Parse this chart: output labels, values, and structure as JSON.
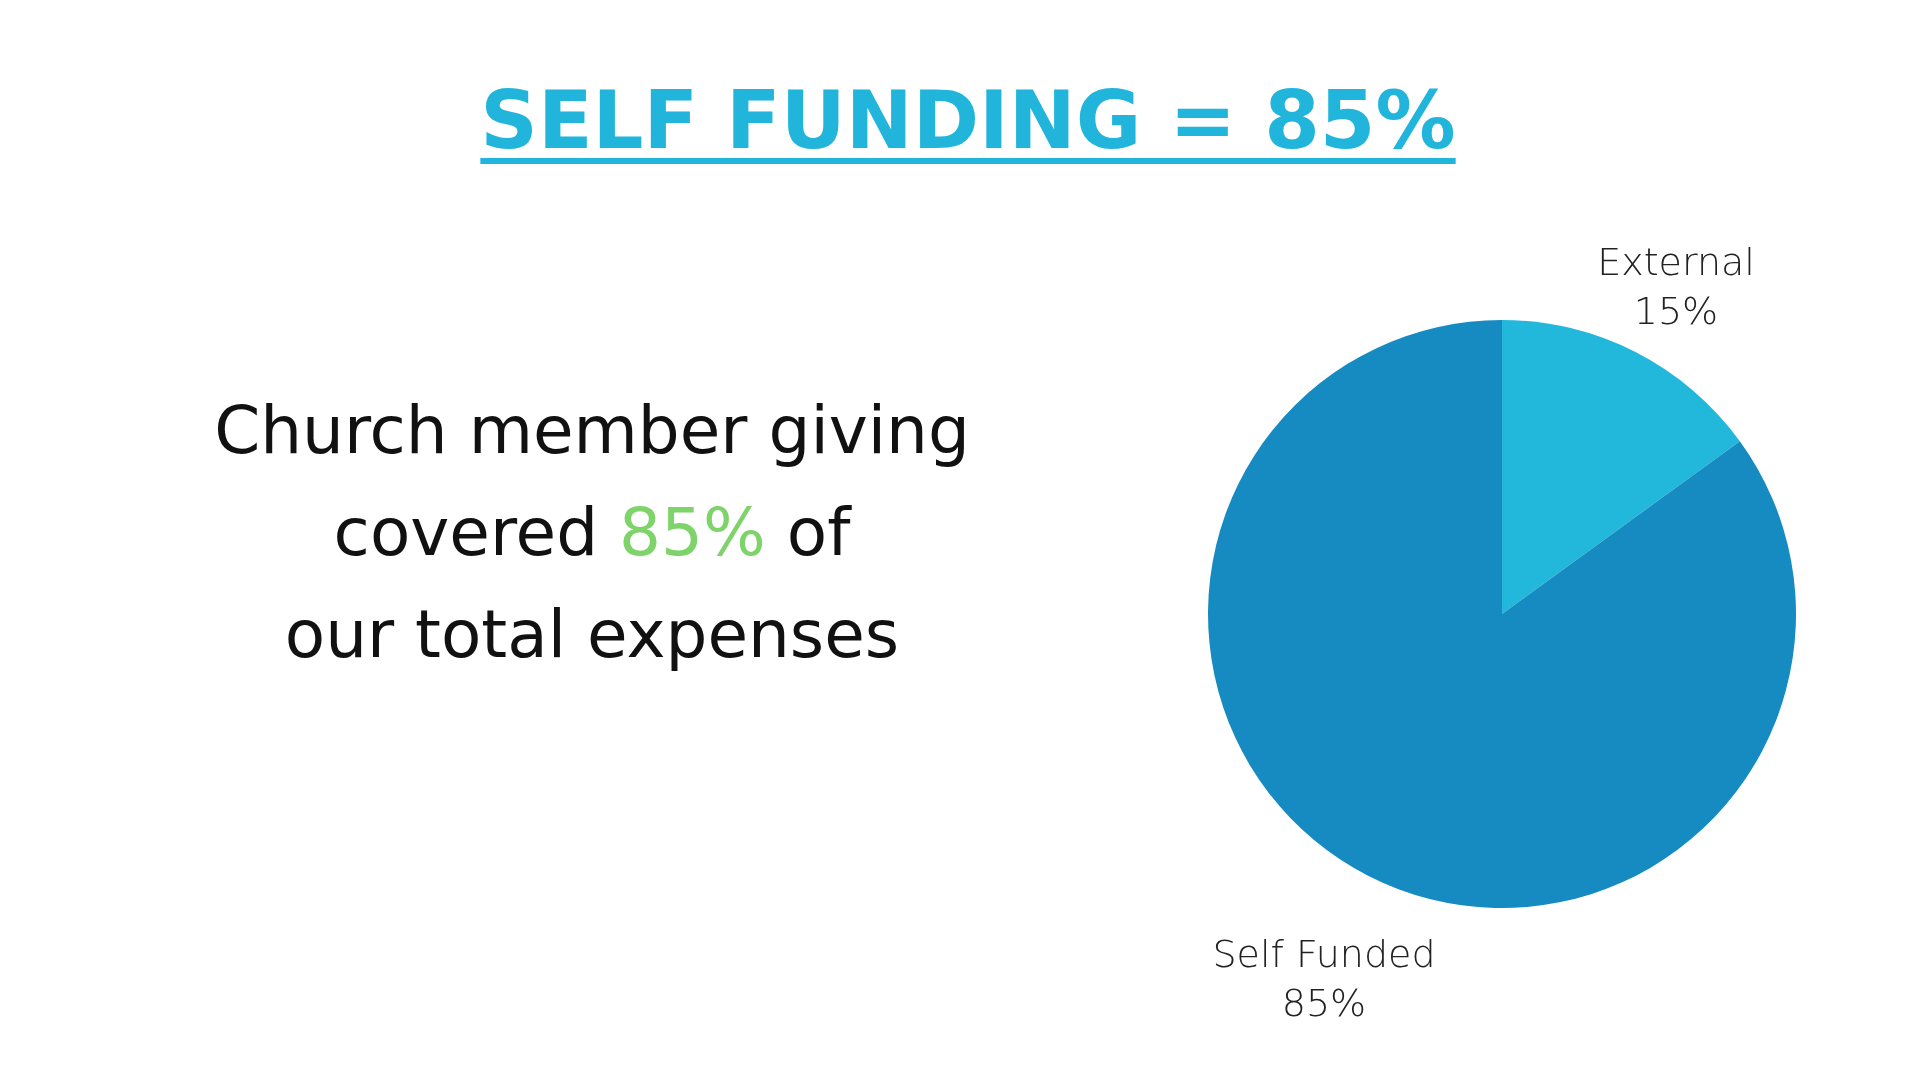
{
  "chart_data": {
    "type": "pie",
    "title": "SELF FUNDING = 85%",
    "categories": [
      "External",
      "Self Funded"
    ],
    "values": [
      15,
      85
    ],
    "colors": [
      "#22b8dc",
      "#168bc2"
    ],
    "value_labels": [
      "15%",
      "85%"
    ],
    "annotations": [
      "Church member giving",
      "covered 85% of",
      "our total expenses"
    ]
  }
}
